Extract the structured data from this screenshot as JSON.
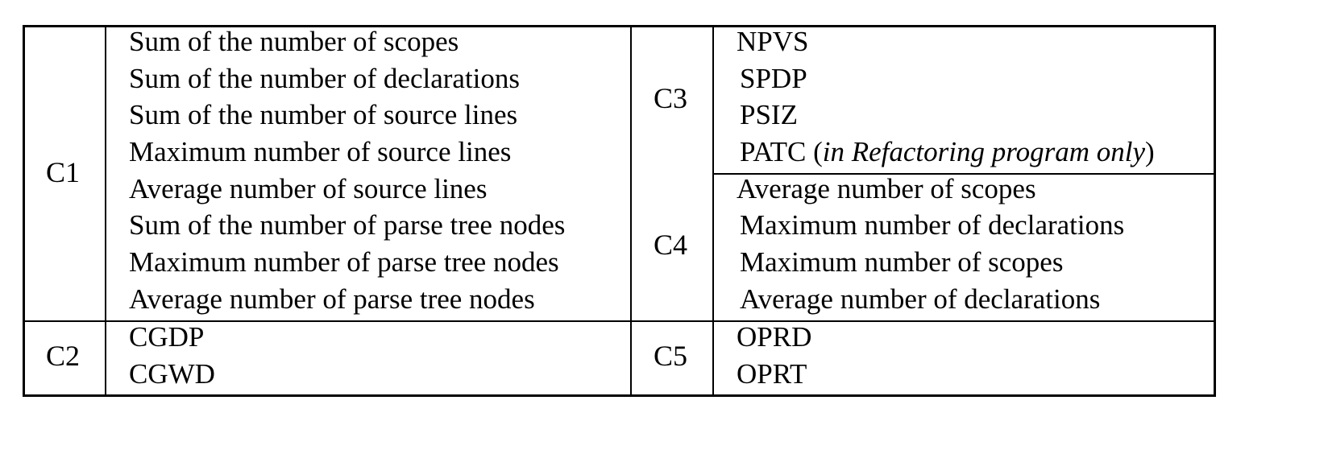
{
  "groups": {
    "c1": {
      "label": "C1",
      "items": [
        "Sum of the number of scopes",
        "Sum of the number of declarations",
        "Sum of the number of source lines",
        "Maximum number of source lines",
        "Average number of source lines",
        "Sum of the number of parse tree nodes",
        "Maximum number of parse tree nodes",
        "Average number of parse tree nodes"
      ]
    },
    "c2": {
      "label": "C2",
      "items": [
        "CGDP",
        "CGWD"
      ]
    },
    "c3": {
      "label": "C3",
      "items": [
        "NPVS",
        "SPDP",
        "PSIZ"
      ],
      "patc": {
        "name": "PATC",
        "open": " (",
        "note": "in Refactoring program only",
        "close": ")"
      }
    },
    "c4": {
      "label": "C4",
      "items": [
        "Average number of scopes",
        "Maximum number of declarations",
        "Maximum number of scopes",
        "Average number of declarations"
      ]
    },
    "c5": {
      "label": "C5",
      "items": [
        "OPRD",
        "OPRT"
      ]
    }
  }
}
